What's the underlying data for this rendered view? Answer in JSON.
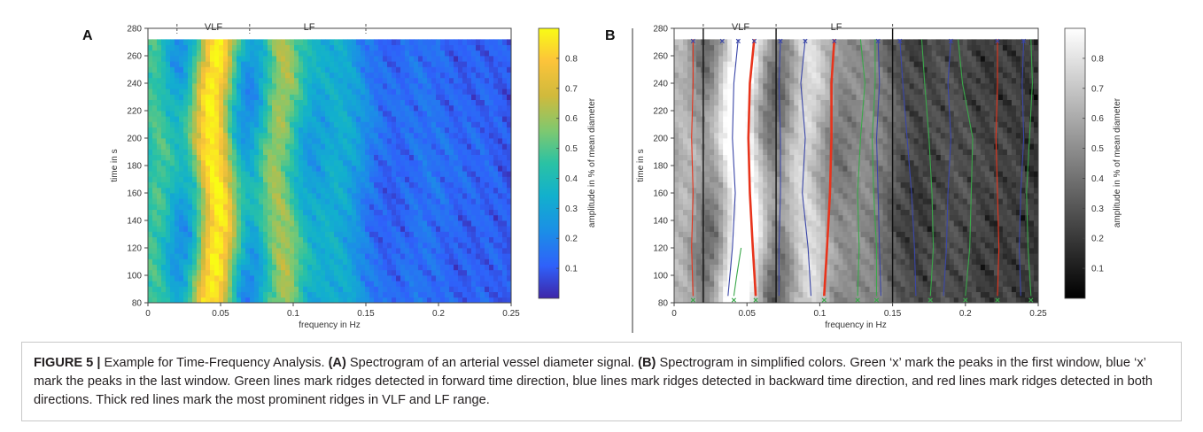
{
  "panel_a": {
    "label": "A",
    "band_vlf": "VLF",
    "band_lf": "LF",
    "xlabel": "frequency in Hz",
    "ylabel": "time in s",
    "x_ticks": [
      "0",
      "0.05",
      "0.1",
      "0.15",
      "0.2",
      "0.25"
    ],
    "y_ticks": [
      "80",
      "100",
      "120",
      "140",
      "160",
      "180",
      "200",
      "220",
      "240",
      "260",
      "280"
    ],
    "colorbar_label": "amplitude in % of mean diameter",
    "colorbar_ticks": [
      "0.1",
      "0.2",
      "0.3",
      "0.4",
      "0.5",
      "0.6",
      "0.7",
      "0.8"
    ]
  },
  "panel_b": {
    "label": "B",
    "band_vlf": "VLF",
    "band_lf": "LF",
    "xlabel": "frequency in Hz",
    "ylabel": "time in s",
    "x_ticks": [
      "0",
      "0.05",
      "0.1",
      "0.15",
      "0.2",
      "0.25"
    ],
    "y_ticks": [
      "80",
      "100",
      "120",
      "140",
      "160",
      "180",
      "200",
      "220",
      "240",
      "260",
      "280"
    ],
    "colorbar_label": "amplitude in % of mean diameter",
    "colorbar_ticks": [
      "0.1",
      "0.2",
      "0.3",
      "0.4",
      "0.5",
      "0.6",
      "0.7",
      "0.8"
    ]
  },
  "caption": {
    "fig_label": "FIGURE 5 |",
    "t1": " Example for Time-Frequency Analysis. ",
    "a": "(A)",
    "t2": " Spectrogram of an arterial vessel diameter signal. ",
    "b": "(B)",
    "t3": " Spectrogram in simplified colors. Green ‘x’ mark the peaks in the first window, blue ‘x’ mark the peaks in the last window. Green lines mark ridges detected in forward time direction, blue lines mark ridges detected in backward time direction, and red lines mark ridges detected in both directions. Thick red lines mark the most prominent ridges in VLF and LF range."
  },
  "chart_data": [
    {
      "type": "heatmap",
      "panel": "A",
      "xlabel": "frequency in Hz",
      "ylabel": "time in s",
      "xlim": [
        0,
        0.25
      ],
      "ylim": [
        80,
        280
      ],
      "data_time_range": [
        80,
        272
      ],
      "colormap": "parula",
      "colorbar_label": "amplitude in % of mean diameter",
      "colorbar_range": [
        0,
        0.9
      ],
      "band_boundaries_hz": [
        0.02,
        0.07,
        0.15
      ],
      "bands": [
        {
          "name": "VLF",
          "range": [
            0.02,
            0.07
          ]
        },
        {
          "name": "LF",
          "range": [
            0.07,
            0.15
          ]
        }
      ],
      "amplitude_peaks_hz": [
        {
          "freq": 0.005,
          "amplitude": 0.45
        },
        {
          "freq": 0.046,
          "amplitude": 0.85
        },
        {
          "freq": 0.09,
          "amplitude": 0.55
        },
        {
          "freq": 0.13,
          "amplitude": 0.3
        },
        {
          "freq": 0.19,
          "amplitude": 0.12
        },
        {
          "freq": 0.235,
          "amplitude": 0.08
        }
      ]
    },
    {
      "type": "heatmap",
      "panel": "B",
      "xlabel": "frequency in Hz",
      "ylabel": "time in s",
      "xlim": [
        0,
        0.25
      ],
      "ylim": [
        80,
        280
      ],
      "data_time_range": [
        80,
        272
      ],
      "colormap": "gray",
      "colorbar_label": "amplitude in % of mean diameter",
      "colorbar_range": [
        0,
        0.9
      ],
      "band_boundaries_hz": [
        0.02,
        0.07,
        0.15
      ],
      "ridges": [
        {
          "direction": "both",
          "prominent": false,
          "color": "#e8341c",
          "t": [
            85,
            120,
            160,
            200,
            240,
            272
          ],
          "f": [
            0.013,
            0.012,
            0.013,
            0.012,
            0.013,
            0.013
          ]
        },
        {
          "direction": "both",
          "prominent": true,
          "color": "#e8341c",
          "t": [
            85,
            120,
            160,
            200,
            240,
            272
          ],
          "f": [
            0.056,
            0.054,
            0.052,
            0.051,
            0.052,
            0.055
          ]
        },
        {
          "direction": "backward",
          "prominent": false,
          "color": "#3a46a8",
          "t": [
            85,
            120,
            160,
            200,
            240,
            272
          ],
          "f": [
            0.037,
            0.04,
            0.042,
            0.04,
            0.041,
            0.044
          ]
        },
        {
          "direction": "forward",
          "prominent": false,
          "color": "#3aa84a",
          "t": [
            85,
            100,
            120
          ],
          "f": [
            0.041,
            0.043,
            0.046
          ]
        },
        {
          "direction": "backward",
          "prominent": false,
          "color": "#3a46a8",
          "t": [
            85,
            120,
            160,
            200,
            240,
            272
          ],
          "f": [
            0.072,
            0.072,
            0.073,
            0.073,
            0.072,
            0.073
          ]
        },
        {
          "direction": "backward",
          "prominent": false,
          "color": "#3a46a8",
          "t": [
            85,
            120,
            160,
            200,
            240,
            272
          ],
          "f": [
            0.094,
            0.092,
            0.088,
            0.09,
            0.087,
            0.09
          ]
        },
        {
          "direction": "both",
          "prominent": true,
          "color": "#e8341c",
          "t": [
            85,
            120,
            160,
            200,
            240,
            272
          ],
          "f": [
            0.103,
            0.105,
            0.107,
            0.108,
            0.108,
            0.11
          ]
        },
        {
          "direction": "forward",
          "prominent": false,
          "color": "#3aa84a",
          "t": [
            85,
            120,
            160,
            200,
            240,
            272
          ],
          "f": [
            0.126,
            0.127,
            0.126,
            0.128,
            0.131,
            0.128
          ]
        },
        {
          "direction": "backward",
          "prominent": false,
          "color": "#3a46a8",
          "t": [
            85,
            120,
            160,
            200,
            240,
            272
          ],
          "f": [
            0.142,
            0.141,
            0.14,
            0.139,
            0.141,
            0.14
          ]
        },
        {
          "direction": "forward",
          "prominent": false,
          "color": "#3aa84a",
          "t": [
            85,
            120,
            160,
            200,
            240,
            272
          ],
          "f": [
            0.139,
            0.139,
            0.137,
            0.136,
            0.138,
            0.138
          ]
        },
        {
          "direction": "backward",
          "prominent": false,
          "color": "#3a46a8",
          "t": [
            85,
            120,
            160,
            200,
            240,
            272
          ],
          "f": [
            0.166,
            0.165,
            0.163,
            0.16,
            0.157,
            0.155
          ]
        },
        {
          "direction": "forward",
          "prominent": false,
          "color": "#3aa84a",
          "t": [
            85,
            120,
            160,
            200,
            240,
            272
          ],
          "f": [
            0.176,
            0.178,
            0.177,
            0.175,
            0.172,
            0.17
          ]
        },
        {
          "direction": "backward",
          "prominent": false,
          "color": "#3a46a8",
          "t": [
            85,
            120,
            160,
            200,
            240,
            272
          ],
          "f": [
            0.185,
            0.187,
            0.188,
            0.19,
            0.188,
            0.19
          ]
        },
        {
          "direction": "forward",
          "prominent": false,
          "color": "#3aa84a",
          "t": [
            85,
            120,
            160,
            200,
            240,
            272
          ],
          "f": [
            0.2,
            0.203,
            0.204,
            0.205,
            0.198,
            0.195
          ]
        },
        {
          "direction": "both",
          "prominent": false,
          "color": "#e8341c",
          "t": [
            85,
            120,
            160,
            200,
            240,
            272
          ],
          "f": [
            0.222,
            0.223,
            0.222,
            0.221,
            0.222,
            0.222
          ]
        },
        {
          "direction": "backward",
          "prominent": false,
          "color": "#3a46a8",
          "t": [
            85,
            120,
            160,
            200,
            240,
            272
          ],
          "f": [
            0.238,
            0.237,
            0.238,
            0.24,
            0.239,
            0.24
          ]
        },
        {
          "direction": "forward",
          "prominent": false,
          "color": "#3aa84a",
          "t": [
            85,
            120,
            160,
            200,
            240,
            272
          ],
          "f": [
            0.245,
            0.243,
            0.242,
            0.244,
            0.246,
            0.245
          ]
        }
      ],
      "first_window_peaks_hz": [
        0.013,
        0.041,
        0.056,
        0.103,
        0.126,
        0.139,
        0.176,
        0.2,
        0.222,
        0.245
      ],
      "last_window_peaks_hz": [
        0.013,
        0.033,
        0.044,
        0.055,
        0.073,
        0.09,
        0.11,
        0.14,
        0.155,
        0.19,
        0.222,
        0.24
      ]
    }
  ]
}
